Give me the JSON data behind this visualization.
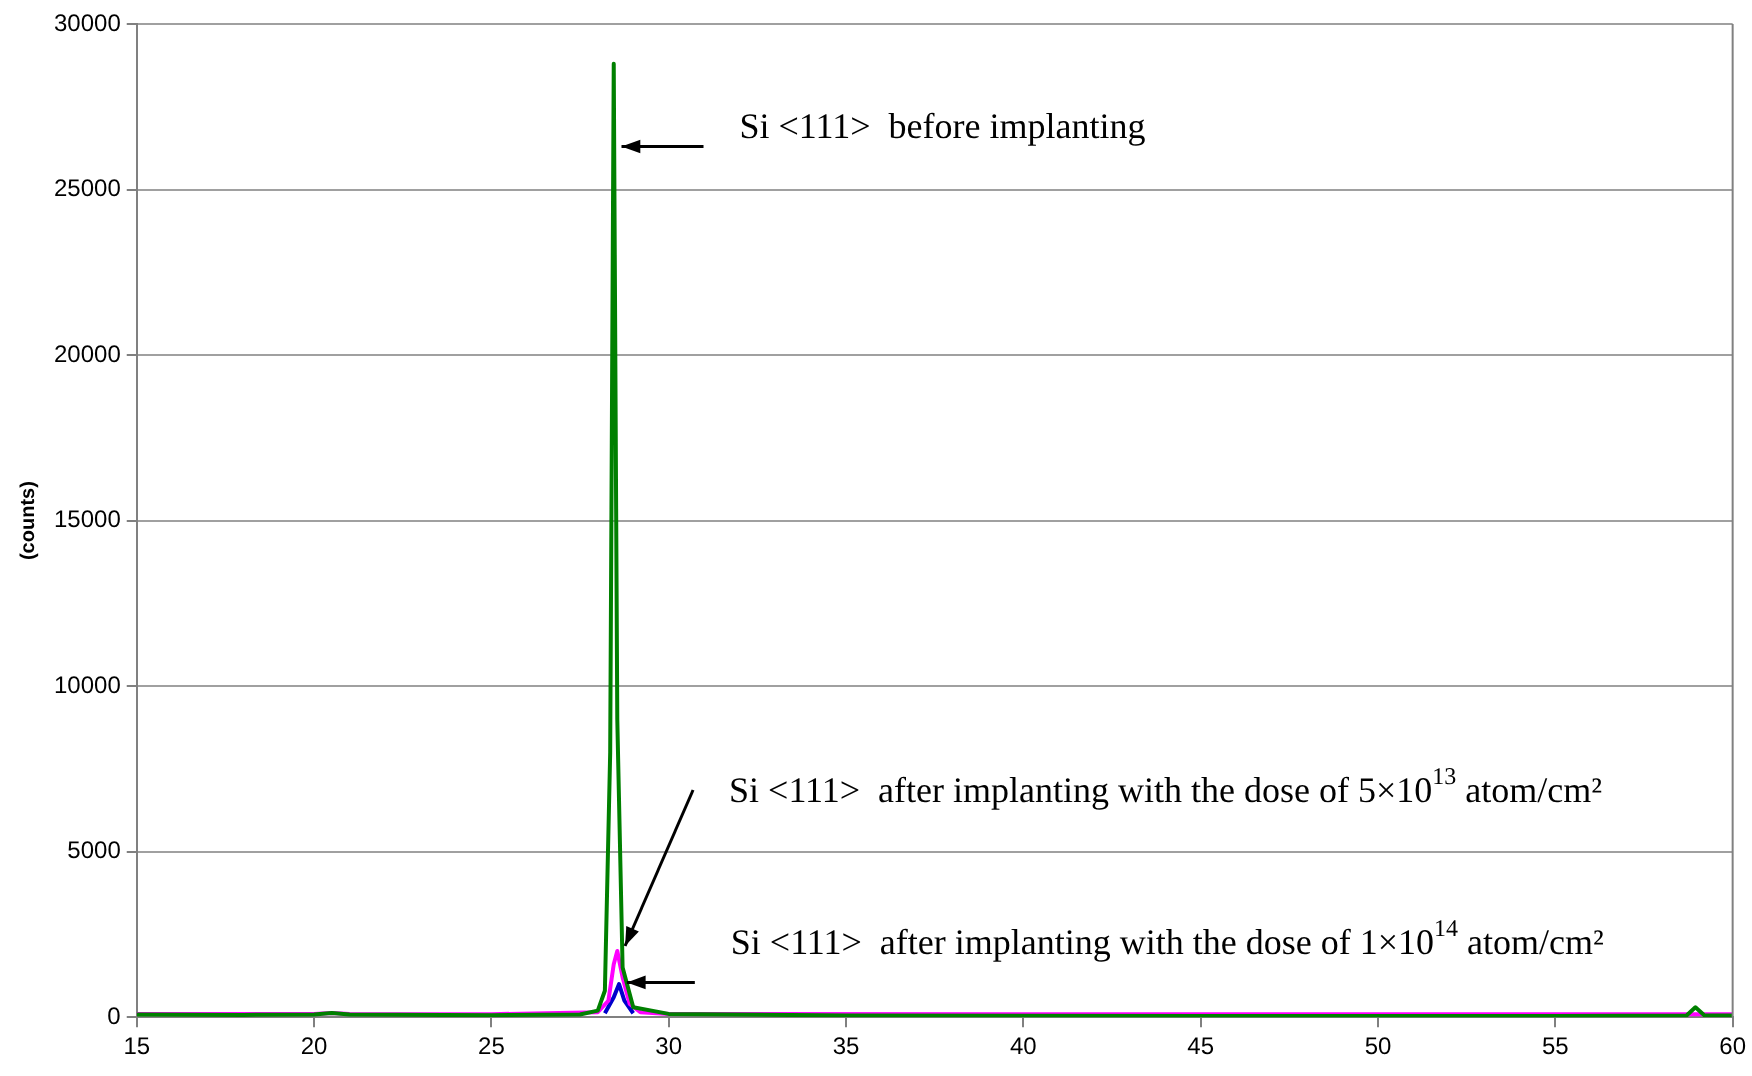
{
  "chart_data": {
    "type": "line",
    "ylabel": "(counts)",
    "xlim": [
      15,
      60
    ],
    "xticks": [
      15,
      20,
      25,
      30,
      35,
      40,
      45,
      50,
      55,
      60
    ],
    "ylim": [
      0,
      30000
    ],
    "yticks": [
      0,
      5000,
      10000,
      15000,
      20000,
      25000,
      30000
    ],
    "grid": "y",
    "legend": false,
    "marker": "none",
    "line_style": "solid",
    "series": [
      {
        "color": "#008000",
        "x": [
          15,
          18,
          20,
          20.5,
          21,
          25,
          27.5,
          28,
          28.2,
          28.35,
          28.45,
          28.55,
          28.7,
          29,
          30,
          35,
          45,
          55,
          58.7,
          58.95,
          59.2,
          60
        ],
        "values": [
          80,
          70,
          80,
          130,
          80,
          60,
          80,
          200,
          800,
          8000,
          28800,
          9000,
          1500,
          300,
          100,
          50,
          40,
          40,
          50,
          300,
          60,
          50
        ]
      },
      {
        "color": "#ff00ff",
        "x": [
          15,
          20,
          20.5,
          21,
          25,
          28,
          28.3,
          28.45,
          28.55,
          28.7,
          28.9,
          29.2,
          30,
          40,
          50,
          60
        ],
        "values": [
          100,
          100,
          130,
          100,
          90,
          150,
          500,
          1600,
          2000,
          1200,
          400,
          150,
          100,
          90,
          90,
          90
        ]
      },
      {
        "color": "#0000cc",
        "x": [
          28.2,
          28.45,
          28.6,
          28.75,
          29
        ],
        "values": [
          120,
          600,
          1000,
          500,
          120
        ]
      }
    ],
    "annotations": [
      {
        "text": "Si <111>  before implanting",
        "x": 28.5,
        "y": 26300
      },
      {
        "text": "Si <111>  after implanting with the dose of 5×10$^{13}$ atom/cm²",
        "x": 28.6,
        "y": 2150
      },
      {
        "text": "Si <111>  after implanting with the dose of 1×10$^{14}$ atom/cm²",
        "x": 28.65,
        "y": 1050
      }
    ]
  }
}
